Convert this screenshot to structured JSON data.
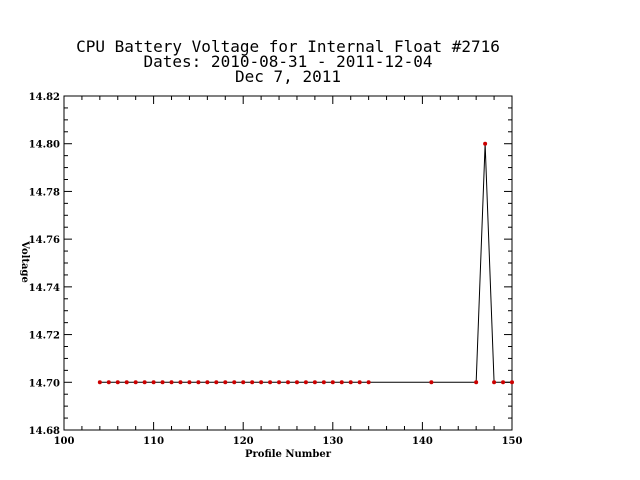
{
  "chart_data": {
    "type": "line",
    "title_lines": [
      "CPU Battery Voltage for Internal Float #2716",
      "Dates:  2010-08-31 -  2011-12-04",
      "Dec  7, 2011"
    ],
    "xlabel": "Profile Number",
    "ylabel": "Voltage",
    "xlim": [
      100,
      150
    ],
    "ylim": [
      14.68,
      14.82
    ],
    "x_ticks": [
      "100",
      "110",
      "120",
      "130",
      "140",
      "150"
    ],
    "y_ticks": [
      "14.68",
      "14.70",
      "14.72",
      "14.74",
      "14.76",
      "14.78",
      "14.80",
      "14.82"
    ],
    "x_tick_values": [
      100,
      110,
      120,
      130,
      140,
      150
    ],
    "y_tick_values": [
      14.68,
      14.7,
      14.72,
      14.74,
      14.76,
      14.78,
      14.8,
      14.82
    ],
    "line_color": "#000000",
    "marker_color": "#cc0000",
    "x": [
      104,
      105,
      106,
      107,
      108,
      109,
      110,
      111,
      112,
      113,
      114,
      115,
      116,
      117,
      118,
      119,
      120,
      121,
      122,
      123,
      124,
      125,
      126,
      127,
      128,
      129,
      130,
      131,
      132,
      133,
      134,
      141,
      146,
      147,
      148,
      149,
      150
    ],
    "y": [
      14.7,
      14.7,
      14.7,
      14.7,
      14.7,
      14.7,
      14.7,
      14.7,
      14.7,
      14.7,
      14.7,
      14.7,
      14.7,
      14.7,
      14.7,
      14.7,
      14.7,
      14.7,
      14.7,
      14.7,
      14.7,
      14.7,
      14.7,
      14.7,
      14.7,
      14.7,
      14.7,
      14.7,
      14.7,
      14.7,
      14.7,
      14.7,
      14.7,
      14.8,
      14.7,
      14.7,
      14.7
    ]
  }
}
